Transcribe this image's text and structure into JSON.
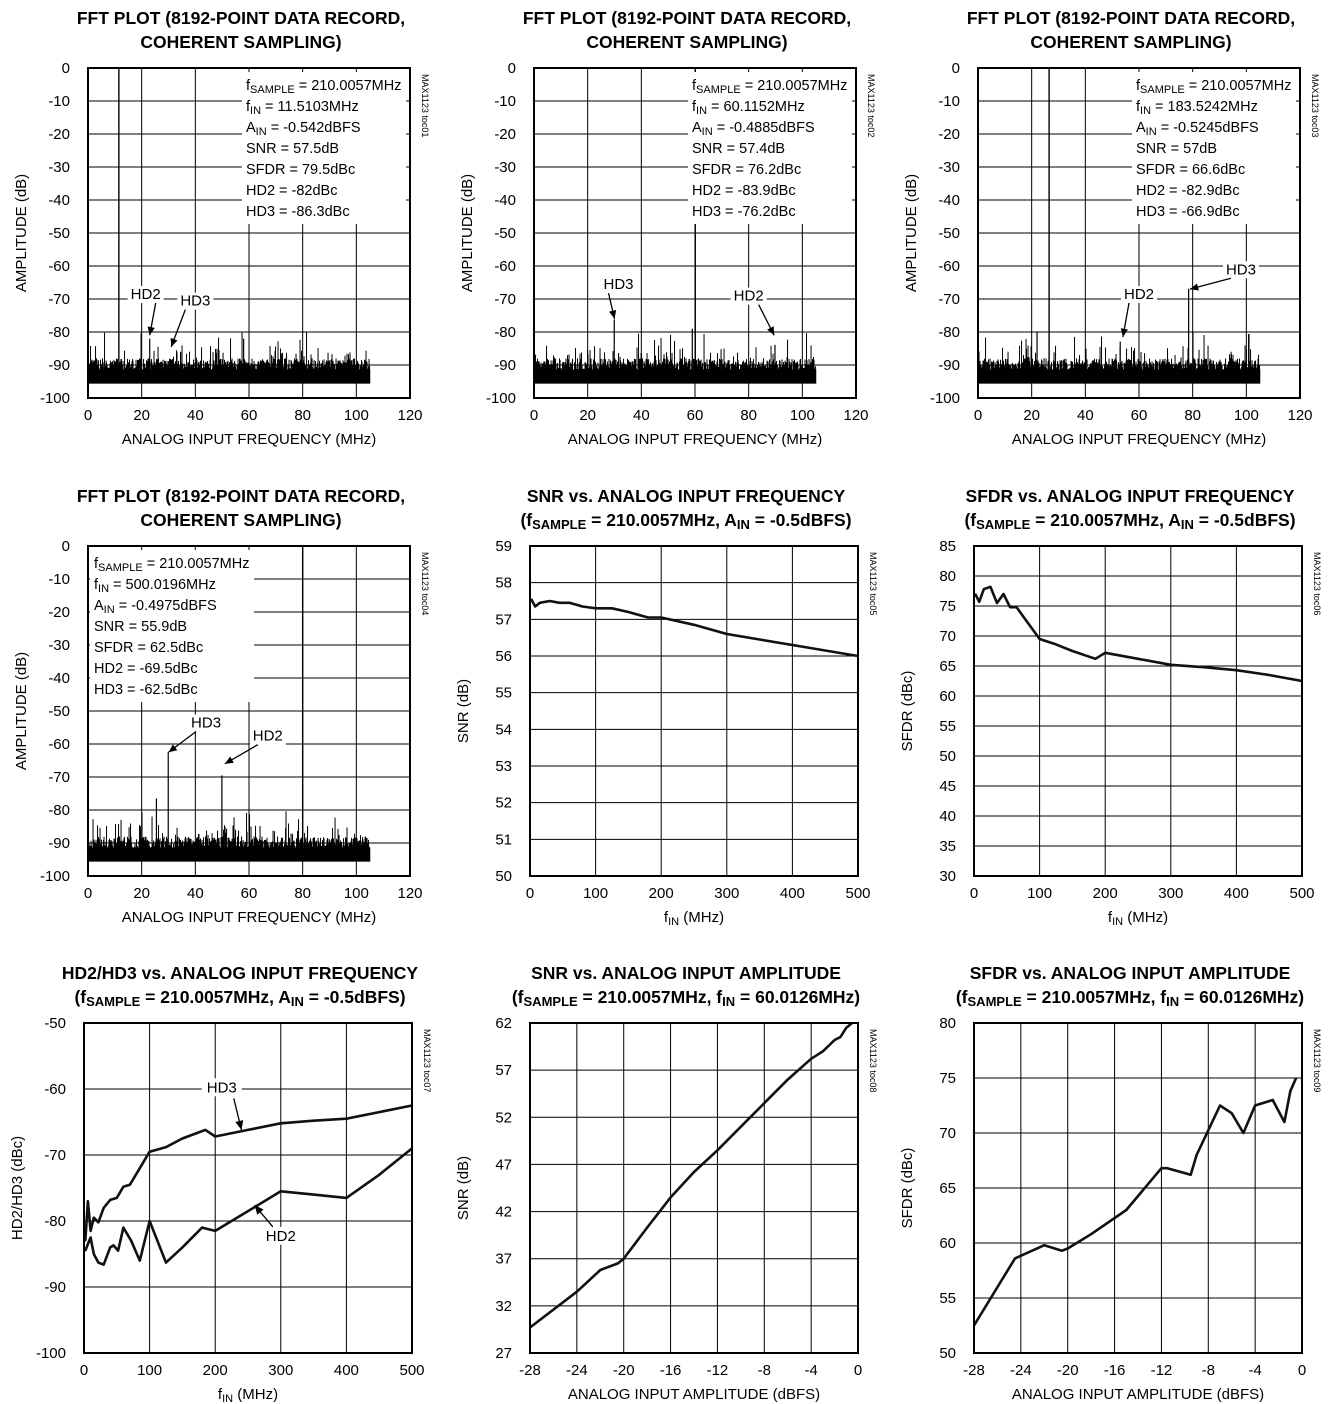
{
  "charts": [
    {
      "kind": "fft",
      "code": "MAX1123 toc01",
      "title_lines": [
        "FFT PLOT (8192-POINT DATA RECORD,",
        "COHERENT SAMPLING)"
      ],
      "xlabel": "ANALOG INPUT FREQUENCY (MHz)",
      "ylabel": "AMPLITUDE (dB)",
      "xlim": [
        0,
        120
      ],
      "ylim": [
        -100,
        0
      ],
      "xticks": [
        "0",
        "20",
        "40",
        "60",
        "80",
        "100",
        "120"
      ],
      "yticks": [
        "0",
        "-10",
        "-20",
        "-30",
        "-40",
        "-50",
        "-60",
        "-70",
        "-80",
        "-90",
        "-100"
      ],
      "notes": [
        {
          "pre": "f",
          "sub": "SAMPLE",
          "post": " = 210.0057MHz"
        },
        {
          "pre": "f",
          "sub": "IN",
          "post": " = 11.5103MHz"
        },
        {
          "pre": "A",
          "sub": "IN",
          "post": " = -0.542dBFS"
        },
        {
          "pre": "SNR = 57.5dB",
          "sub": "",
          "post": ""
        },
        {
          "pre": "SFDR = 79.5dBc",
          "sub": "",
          "post": ""
        },
        {
          "pre": "HD2 = -82dBc",
          "sub": "",
          "post": ""
        },
        {
          "pre": "HD3 = -86.3dBc",
          "sub": "",
          "post": ""
        }
      ],
      "notes_pos": "top-right",
      "fundamental_mhz": 11.5,
      "spurs": [
        {
          "f": 23,
          "db": -82
        },
        {
          "f": 34.5,
          "db": -86
        },
        {
          "f": 58,
          "db": -82
        }
      ],
      "labels": [
        {
          "text": "HD2",
          "f": 21.5,
          "db": -70,
          "to": [
            23,
            -81
          ]
        },
        {
          "text": "HD3",
          "f": 40,
          "db": -72,
          "to": [
            31,
            -84.5
          ]
        }
      ]
    },
    {
      "kind": "fft",
      "code": "MAX1123 toc02",
      "title_lines": [
        "FFT PLOT (8192-POINT DATA RECORD,",
        "COHERENT SAMPLING)"
      ],
      "xlabel": "ANALOG INPUT FREQUENCY (MHz)",
      "ylabel": "AMPLITUDE (dB)",
      "xlim": [
        0,
        120
      ],
      "ylim": [
        -100,
        0
      ],
      "xticks": [
        "0",
        "20",
        "40",
        "60",
        "80",
        "100",
        "120"
      ],
      "yticks": [
        "0",
        "-10",
        "-20",
        "-30",
        "-40",
        "-50",
        "-60",
        "-70",
        "-80",
        "-90",
        "-100"
      ],
      "notes": [
        {
          "pre": "f",
          "sub": "SAMPLE",
          "post": " = 210.0057MHz"
        },
        {
          "pre": "f",
          "sub": "IN",
          "post": " = 60.1152MHz"
        },
        {
          "pre": "A",
          "sub": "IN",
          "post": " = -0.4885dBFS"
        },
        {
          "pre": "SNR = 57.4dB",
          "sub": "",
          "post": ""
        },
        {
          "pre": "SFDR = 76.2dBc",
          "sub": "",
          "post": ""
        },
        {
          "pre": "HD2 = -83.9dBc",
          "sub": "",
          "post": ""
        },
        {
          "pre": "HD3 = -76.2dBc",
          "sub": "",
          "post": ""
        }
      ],
      "notes_pos": "top-right",
      "fundamental_mhz": 60.1,
      "spurs": [
        {
          "f": 29.9,
          "db": -76.2
        },
        {
          "f": 89.8,
          "db": -83.9
        },
        {
          "f": 59,
          "db": -79
        }
      ],
      "labels": [
        {
          "text": "HD3",
          "f": 31.5,
          "db": -67,
          "to": [
            30,
            -76
          ]
        },
        {
          "text": "HD2",
          "f": 80,
          "db": -70.5,
          "to": [
            89.5,
            -81
          ]
        }
      ]
    },
    {
      "kind": "fft",
      "code": "MAX1123 toc03",
      "title_lines": [
        "FFT PLOT (8192-POINT DATA RECORD,",
        "COHERENT SAMPLING)"
      ],
      "xlabel": "ANALOG INPUT FREQUENCY (MHz)",
      "ylabel": "AMPLITUDE (dB)",
      "xlim": [
        0,
        120
      ],
      "ylim": [
        -100,
        0
      ],
      "xticks": [
        "0",
        "20",
        "40",
        "60",
        "80",
        "100",
        "120"
      ],
      "yticks": [
        "0",
        "-10",
        "-20",
        "-30",
        "-40",
        "-50",
        "-60",
        "-70",
        "-80",
        "-90",
        "-100"
      ],
      "notes": [
        {
          "pre": "f",
          "sub": "SAMPLE",
          "post": " = 210.0057MHz"
        },
        {
          "pre": "f",
          "sub": "IN",
          "post": " = 183.5242MHz"
        },
        {
          "pre": "A",
          "sub": "IN",
          "post": " = -0.5245dBFS"
        },
        {
          "pre": "SNR = 57dB",
          "sub": "",
          "post": ""
        },
        {
          "pre": "SFDR = 66.6dBc",
          "sub": "",
          "post": ""
        },
        {
          "pre": "HD2 = -82.9dBc",
          "sub": "",
          "post": ""
        },
        {
          "pre": "HD3 = -66.9dBc",
          "sub": "",
          "post": ""
        }
      ],
      "notes_pos": "top-right",
      "fundamental_mhz": 26.5,
      "spurs": [
        {
          "f": 78.5,
          "db": -66.9
        },
        {
          "f": 53,
          "db": -82.9
        },
        {
          "f": 22,
          "db": -80
        }
      ],
      "labels": [
        {
          "text": "HD3",
          "f": 98,
          "db": -62.5,
          "to": [
            79,
            -67
          ]
        },
        {
          "text": "HD2",
          "f": 60,
          "db": -70,
          "to": [
            54,
            -81.5
          ]
        }
      ]
    },
    {
      "kind": "fft",
      "code": "MAX1123 toc04",
      "title_lines": [
        "FFT PLOT (8192-POINT DATA RECORD,",
        "COHERENT SAMPLING)"
      ],
      "xlabel": "ANALOG INPUT FREQUENCY (MHz)",
      "ylabel": "AMPLITUDE (dB)",
      "xlim": [
        0,
        120
      ],
      "ylim": [
        -100,
        0
      ],
      "xticks": [
        "0",
        "20",
        "40",
        "60",
        "80",
        "100",
        "120"
      ],
      "yticks": [
        "0",
        "-10",
        "-20",
        "-30",
        "-40",
        "-50",
        "-60",
        "-70",
        "-80",
        "-90",
        "-100"
      ],
      "notes": [
        {
          "pre": "f",
          "sub": "SAMPLE",
          "post": " = 210.0057MHz"
        },
        {
          "pre": "f",
          "sub": "IN",
          "post": " = 500.0196MHz"
        },
        {
          "pre": "A",
          "sub": "IN",
          "post": " = -0.4975dBFS"
        },
        {
          "pre": "SNR = 55.9dB",
          "sub": "",
          "post": ""
        },
        {
          "pre": "SFDR = 62.5dBc",
          "sub": "",
          "post": ""
        },
        {
          "pre": "HD2 = -69.5dBc",
          "sub": "",
          "post": ""
        },
        {
          "pre": "HD3 = -62.5dBc",
          "sub": "",
          "post": ""
        }
      ],
      "notes_pos": "top-left",
      "fundamental_mhz": 80,
      "spurs": [
        {
          "f": 29.9,
          "db": -62.5
        },
        {
          "f": 49.9,
          "db": -69.5
        },
        {
          "f": 25.5,
          "db": -76.5
        }
      ],
      "labels": [
        {
          "text": "HD3",
          "f": 44,
          "db": -55,
          "to": [
            30,
            -62.5
          ]
        },
        {
          "text": "HD2",
          "f": 67,
          "db": -59,
          "to": [
            51,
            -66
          ]
        }
      ]
    },
    {
      "kind": "line",
      "code": "MAX1123 toc05",
      "title_lines": [
        "SNR vs. ANALOG INPUT FREQUENCY"
      ],
      "cond": [
        {
          "t": "(f",
          "sub": false
        },
        {
          "t": "SAMPLE",
          "sub": true
        },
        {
          "t": " = 210.0057MHz, A",
          "sub": false
        },
        {
          "t": "IN",
          "sub": true
        },
        {
          "t": " = -0.5dBFS)",
          "sub": false
        }
      ],
      "xlabel_parts": [
        {
          "t": "f",
          "sub": false
        },
        {
          "t": "IN",
          "sub": true
        },
        {
          "t": " (MHz)",
          "sub": false
        }
      ],
      "ylabel": "SNR (dB)",
      "xlim": [
        0,
        500
      ],
      "ylim": [
        50,
        59
      ],
      "xticks": [
        "0",
        "100",
        "200",
        "300",
        "400",
        "500"
      ],
      "yticks": [
        "59",
        "58",
        "57",
        "56",
        "55",
        "54",
        "53",
        "52",
        "51",
        "50"
      ],
      "series": [
        {
          "x": [
            2,
            8,
            15,
            30,
            45,
            60,
            80,
            100,
            125,
            150,
            180,
            200,
            250,
            300,
            350,
            400,
            450,
            500
          ],
          "y": [
            57.55,
            57.35,
            57.45,
            57.5,
            57.45,
            57.45,
            57.35,
            57.3,
            57.3,
            57.2,
            57.05,
            57.05,
            56.85,
            56.6,
            56.45,
            56.3,
            56.15,
            56.0
          ]
        }
      ]
    },
    {
      "kind": "line",
      "code": "MAX1123 toc06",
      "title_lines": [
        "SFDR vs. ANALOG INPUT FREQUENCY"
      ],
      "cond": [
        {
          "t": "(f",
          "sub": false
        },
        {
          "t": "SAMPLE",
          "sub": true
        },
        {
          "t": " = 210.0057MHz, A",
          "sub": false
        },
        {
          "t": "IN",
          "sub": true
        },
        {
          "t": " = -0.5dBFS)",
          "sub": false
        }
      ],
      "xlabel_parts": [
        {
          "t": "f",
          "sub": false
        },
        {
          "t": "IN",
          "sub": true
        },
        {
          "t": " (MHz)",
          "sub": false
        }
      ],
      "ylabel": "SFDR (dBc)",
      "xlim": [
        0,
        500
      ],
      "ylim": [
        30,
        85
      ],
      "xticks": [
        "0",
        "100",
        "200",
        "300",
        "400",
        "500"
      ],
      "yticks": [
        "85",
        "80",
        "75",
        "70",
        "65",
        "60",
        "55",
        "50",
        "45",
        "40",
        "35",
        "30"
      ],
      "series": [
        {
          "x": [
            2,
            8,
            15,
            25,
            35,
            45,
            55,
            65,
            80,
            100,
            125,
            150,
            185,
            200,
            250,
            300,
            350,
            400,
            450,
            500
          ],
          "y": [
            77,
            75.7,
            77.8,
            78.2,
            75.5,
            77,
            74.8,
            74.8,
            72.5,
            69.5,
            68.6,
            67.5,
            66.2,
            67.2,
            66.2,
            65.2,
            64.8,
            64.3,
            63.5,
            62.5
          ]
        }
      ]
    },
    {
      "kind": "line",
      "code": "MAX1123 toc07",
      "title_lines": [
        "HD2/HD3 vs. ANALOG INPUT FREQUENCY"
      ],
      "cond": [
        {
          "t": "(f",
          "sub": false
        },
        {
          "t": "SAMPLE",
          "sub": true
        },
        {
          "t": " = 210.0057MHz, A",
          "sub": false
        },
        {
          "t": "IN",
          "sub": true
        },
        {
          "t": " = -0.5dBFS)",
          "sub": false
        }
      ],
      "xlabel_parts": [
        {
          "t": "f",
          "sub": false
        },
        {
          "t": "IN",
          "sub": true
        },
        {
          "t": " (MHz)",
          "sub": false
        }
      ],
      "ylabel": "HD2/HD3 (dBc)",
      "xlim": [
        0,
        500
      ],
      "ylim": [
        -100,
        -50
      ],
      "xticks": [
        "0",
        "100",
        "200",
        "300",
        "400",
        "500"
      ],
      "yticks": [
        "-50",
        "-60",
        "-70",
        "-80",
        "-90",
        "-100"
      ],
      "series": [
        {
          "name": "HD3",
          "x": [
            2,
            6,
            10,
            15,
            22,
            30,
            40,
            50,
            60,
            70,
            85,
            100,
            125,
            150,
            185,
            200,
            250,
            300,
            350,
            400,
            450,
            500
          ],
          "y": [
            -83,
            -77,
            -81.5,
            -79.5,
            -80.2,
            -78,
            -76.8,
            -76.5,
            -74.8,
            -74.5,
            -72,
            -69.5,
            -68.8,
            -67.5,
            -66.2,
            -67.2,
            -66.2,
            -65.2,
            -64.8,
            -64.5,
            -63.5,
            -62.5
          ]
        },
        {
          "name": "HD2",
          "x": [
            2,
            6,
            10,
            15,
            22,
            30,
            40,
            45,
            52,
            60,
            72,
            85,
            100,
            125,
            150,
            180,
            200,
            250,
            300,
            350,
            400,
            450,
            500
          ],
          "y": [
            -84.5,
            -83.5,
            -82.5,
            -85,
            -86.3,
            -86.6,
            -84,
            -83.7,
            -84.5,
            -81,
            -83,
            -86,
            -80,
            -86.3,
            -84,
            -81,
            -81.5,
            -78.5,
            -75.5,
            -76,
            -76.5,
            -73,
            -69
          ]
        }
      ],
      "labels": [
        {
          "text": "HD3",
          "x": 210,
          "y": -60.5,
          "to": [
            240,
            -66.2
          ]
        },
        {
          "text": "HD2",
          "x": 300,
          "y": -83,
          "to": [
            260,
            -77.6
          ]
        }
      ]
    },
    {
      "kind": "line",
      "code": "MAX1123 toc08",
      "title_lines": [
        "SNR vs. ANALOG INPUT AMPLITUDE"
      ],
      "cond": [
        {
          "t": "(f",
          "sub": false
        },
        {
          "t": "SAMPLE",
          "sub": true
        },
        {
          "t": " = 210.0057MHz, f",
          "sub": false
        },
        {
          "t": "IN",
          "sub": true
        },
        {
          "t": " = 60.0126MHz)",
          "sub": false
        }
      ],
      "xlabel": "ANALOG INPUT AMPLITUDE (dBFS)",
      "ylabel": "SNR (dB)",
      "xlim": [
        -28,
        0
      ],
      "ylim": [
        27,
        62
      ],
      "xticks": [
        "-28",
        "-24",
        "-20",
        "-16",
        "-12",
        "-8",
        "-4",
        "0"
      ],
      "yticks": [
        "62",
        "57",
        "52",
        "47",
        "42",
        "37",
        "32",
        "27"
      ],
      "series": [
        {
          "x": [
            -28,
            -24,
            -22,
            -20.5,
            -20,
            -18,
            -16,
            -14,
            -12,
            -10,
            -8,
            -6,
            -4,
            -3,
            -2,
            -1.5,
            -1,
            -0.5
          ],
          "y": [
            29.7,
            33.5,
            35.8,
            36.5,
            37,
            40.3,
            43.5,
            46.2,
            48.5,
            51,
            53.5,
            56,
            58.2,
            59,
            60.2,
            60.5,
            61.5,
            62
          ]
        }
      ]
    },
    {
      "kind": "line",
      "code": "MAX1123 toc09",
      "title_lines": [
        "SFDR vs. ANALOG INPUT AMPLITUDE"
      ],
      "cond": [
        {
          "t": "(f",
          "sub": false
        },
        {
          "t": "SAMPLE",
          "sub": true
        },
        {
          "t": " = 210.0057MHz, f",
          "sub": false
        },
        {
          "t": "IN",
          "sub": true
        },
        {
          "t": " = 60.0126MHz)",
          "sub": false
        }
      ],
      "xlabel": "ANALOG INPUT AMPLITUDE (dBFS)",
      "ylabel": "SFDR (dBc)",
      "xlim": [
        -28,
        0
      ],
      "ylim": [
        50,
        80
      ],
      "xticks": [
        "-28",
        "-24",
        "-20",
        "-16",
        "-12",
        "-8",
        "-4",
        "0"
      ],
      "yticks": [
        "80",
        "75",
        "70",
        "65",
        "60",
        "55",
        "50"
      ],
      "series": [
        {
          "x": [
            -28,
            -24.5,
            -22,
            -20.5,
            -20,
            -18,
            -15,
            -12,
            -11.5,
            -9.5,
            -9,
            -7,
            -6,
            -5,
            -4,
            -2.5,
            -1.5,
            -1,
            -0.5
          ],
          "y": [
            52.5,
            58.6,
            59.8,
            59.3,
            59.5,
            60.8,
            63,
            66.8,
            66.8,
            66.2,
            68,
            72.5,
            71.8,
            70,
            72.5,
            73,
            71,
            73.8,
            75
          ]
        }
      ]
    }
  ]
}
